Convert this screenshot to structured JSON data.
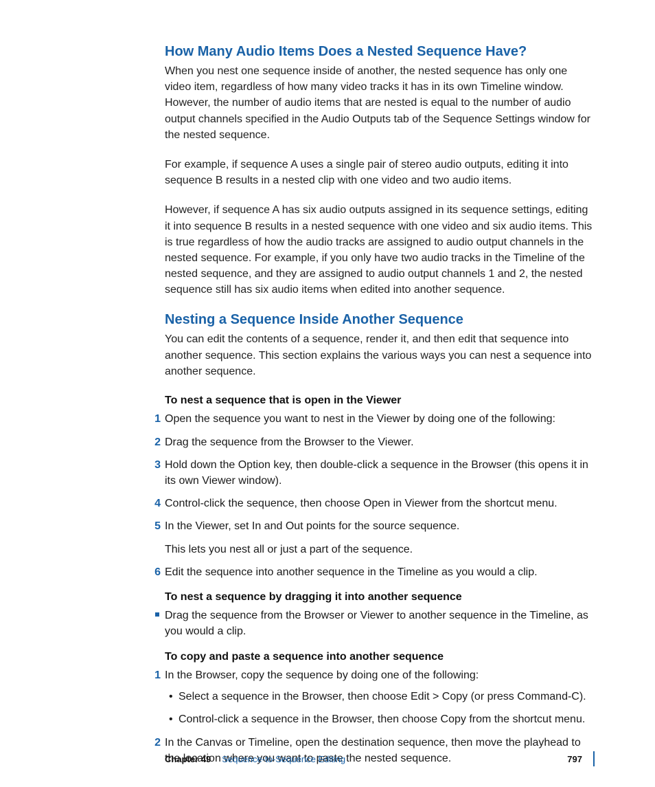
{
  "section1": {
    "heading": "How Many Audio Items Does a Nested Sequence Have?",
    "p1": "When you nest one sequence inside of another, the nested sequence has only one video item, regardless of how many video tracks it has in its own Timeline window. However, the number of audio items that are nested is equal to the number of audio output channels specified in the Audio Outputs tab of the Sequence Settings window for the nested sequence.",
    "p2": "For example, if sequence A uses a single pair of stereo audio outputs, editing it into sequence B results in a nested clip with one video and two audio items.",
    "p3": "However, if sequence A has six audio outputs assigned in its sequence settings, editing it into sequence B results in a nested sequence with one video and six audio items. This is true regardless of how the audio tracks are assigned to audio output channels in the nested sequence. For example, if you only have two audio tracks in the Timeline of the nested sequence, and they are assigned to audio output channels 1 and 2, the nested sequence still has six audio items when edited into another sequence."
  },
  "section2": {
    "heading": "Nesting a Sequence Inside Another Sequence",
    "intro": "You can edit the contents of a sequence, render it, and then edit that sequence into another sequence. This section explains the various ways you can nest a sequence into another sequence.",
    "task1_title": "To nest a sequence that is open in the Viewer",
    "steps1": {
      "s1": "Open the sequence you want to nest in the Viewer by doing one of the following:",
      "s2": "Drag the sequence from the Browser to the Viewer.",
      "s3": "Hold down the Option key, then double-click a sequence in the Browser (this opens it in its own Viewer window).",
      "s4": "Control-click the sequence, then choose Open in Viewer from the shortcut menu.",
      "s5": "In the Viewer, set In and Out points for the source sequence.",
      "s5_sub": "This lets you nest all or just a part of the sequence.",
      "s6": "Edit the sequence into another sequence in the Timeline as you would a clip."
    },
    "task2_title": "To nest a sequence by dragging it into another sequence",
    "bullet1": "Drag the sequence from the Browser or Viewer to another sequence in the Timeline, as you would a clip.",
    "task3_title": "To copy and paste a sequence into another sequence",
    "steps3": {
      "s1": "In the Browser, copy the sequence by doing one of the following:",
      "s1_b1": "Select a sequence in the Browser, then choose Edit > Copy (or press Command-C).",
      "s1_b2": "Control-click a sequence in the Browser, then choose Copy from the shortcut menu.",
      "s2": "In the Canvas or Timeline, open the destination sequence, then move the playhead to the location where you want to paste the nested sequence."
    }
  },
  "footer": {
    "chapter": "Chapter 49",
    "title": "Sequence-to-Sequence Editing",
    "page": "797"
  },
  "nums": {
    "1": "1",
    "2": "2",
    "3": "3",
    "4": "4",
    "5": "5",
    "6": "6"
  }
}
